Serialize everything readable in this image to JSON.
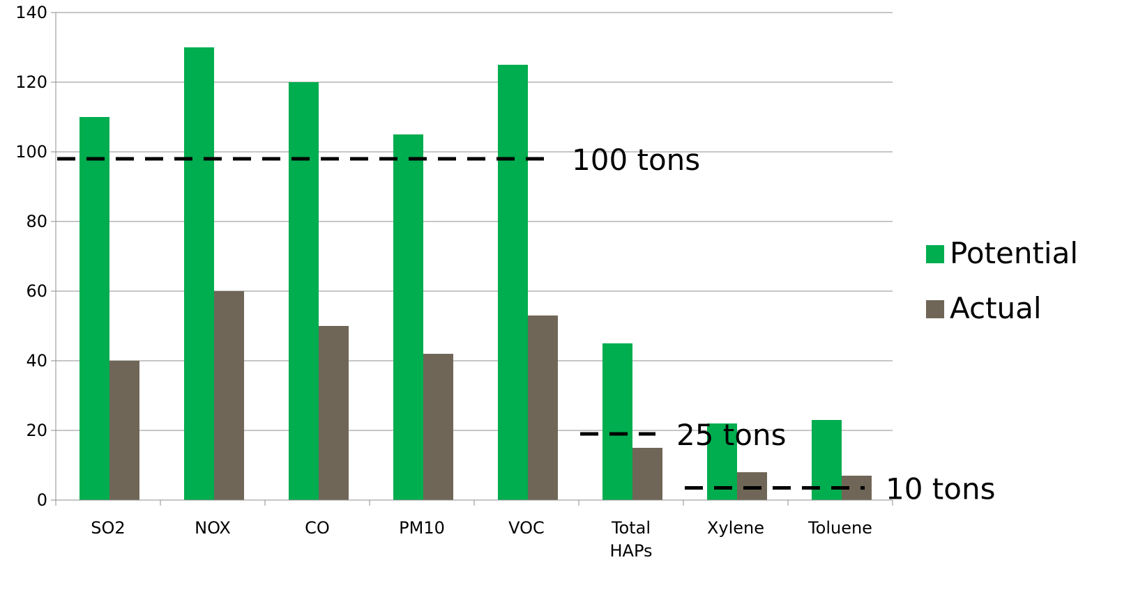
{
  "chart_data": {
    "type": "bar",
    "categories": [
      [
        "SO2"
      ],
      [
        "NOX"
      ],
      [
        "CO"
      ],
      [
        "PM10"
      ],
      [
        "VOC"
      ],
      [
        "Total",
        "HAPs"
      ],
      [
        "Xylene"
      ],
      [
        "Toluene"
      ]
    ],
    "series": [
      {
        "name": "Potential",
        "color": "#00AD4F",
        "values": [
          110,
          130,
          120,
          105,
          125,
          45,
          22,
          23
        ]
      },
      {
        "name": "Actual",
        "color": "#706657",
        "values": [
          40,
          60,
          50,
          42,
          53,
          15,
          8,
          7
        ]
      }
    ],
    "ylim": [
      0,
      140
    ],
    "yticks": [
      0,
      20,
      40,
      60,
      80,
      100,
      120,
      140
    ],
    "grid": true,
    "legend_position": "right",
    "title": "",
    "xlabel": "",
    "ylabel": "",
    "annotations": [
      {
        "label": "100 tons",
        "y": 98,
        "from_category": 0,
        "to_category": 4,
        "style": "dashed"
      },
      {
        "label": "25 tons",
        "y": 19,
        "from_category": 5,
        "to_category": 5,
        "style": "dashed"
      },
      {
        "label": "10 tons",
        "y": 3.5,
        "from_category": 6,
        "to_category": 7,
        "style": "dashed"
      }
    ]
  }
}
